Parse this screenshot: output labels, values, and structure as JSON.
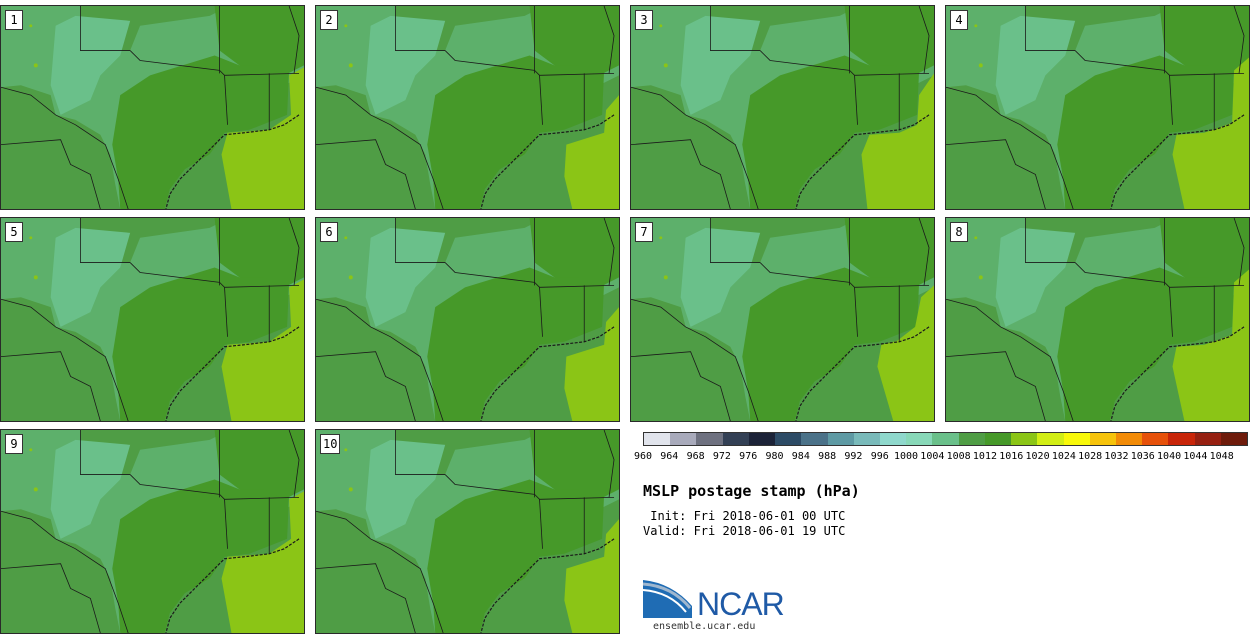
{
  "panels": [
    {
      "label": "1",
      "yellow_variant": 0
    },
    {
      "label": "2",
      "yellow_variant": 1
    },
    {
      "label": "3",
      "yellow_variant": 2
    },
    {
      "label": "4",
      "yellow_variant": 3
    },
    {
      "label": "5",
      "yellow_variant": 0
    },
    {
      "label": "6",
      "yellow_variant": 1
    },
    {
      "label": "7",
      "yellow_variant": 4
    },
    {
      "label": "8",
      "yellow_variant": 3
    },
    {
      "label": "9",
      "yellow_variant": 0
    },
    {
      "label": "10",
      "yellow_variant": 1
    }
  ],
  "colorbar": {
    "ticks": [
      "960",
      "964",
      "968",
      "972",
      "976",
      "980",
      "984",
      "988",
      "992",
      "996",
      "1000",
      "1004",
      "1008",
      "1012",
      "1016",
      "1020",
      "1024",
      "1028",
      "1032",
      "1036",
      "1040",
      "1044",
      "1048"
    ],
    "colors": [
      "#e1e4ec",
      "#a8aabb",
      "#6e7180",
      "#334055",
      "#1c2338",
      "#2d4b66",
      "#4b7289",
      "#5e9aa4",
      "#79baba",
      "#8fd8cc",
      "#88d8b8",
      "#6ac08a",
      "#4f9d45",
      "#469929",
      "#8bc516",
      "#d2ee15",
      "#f9f90a",
      "#f6c30b",
      "#f28b07",
      "#e6510a",
      "#c82509",
      "#962011",
      "#6e1b0b"
    ]
  },
  "map_colors": {
    "light": "#6ac08a",
    "medium": "#4f9d45",
    "dark": "#469929",
    "yellow": "#8bc516",
    "border": "#1a1a1a"
  },
  "title": "MSLP postage stamp (hPa)",
  "init_line": " Init: Fri 2018-06-01 00 UTC",
  "valid_line": "Valid: Fri 2018-06-01 19 UTC",
  "logo": {
    "text": "NCAR",
    "url": "ensemble.ucar.edu"
  }
}
